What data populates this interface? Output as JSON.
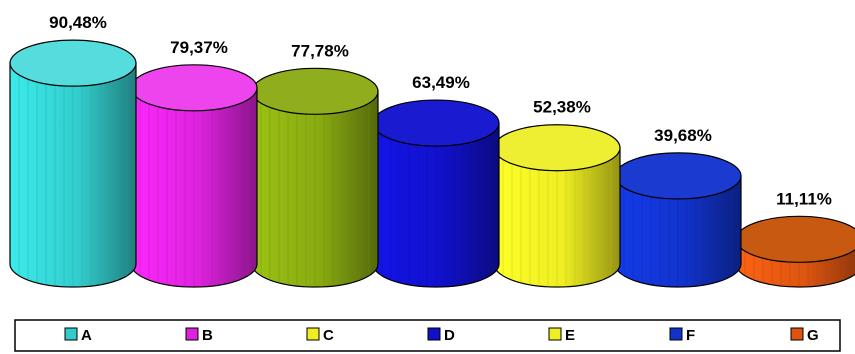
{
  "chart_data": {
    "type": "bar",
    "style": "3d-cylinder",
    "categories": [
      "A",
      "B",
      "C",
      "D",
      "E",
      "F",
      "G"
    ],
    "values": [
      90.48,
      79.37,
      77.78,
      63.49,
      52.38,
      39.68,
      11.11
    ],
    "value_labels": [
      "90,48%",
      "79,37%",
      "77,78%",
      "63,49%",
      "52,38%",
      "39,68%",
      "11,11%"
    ],
    "unit": "%",
    "ylim": [
      0,
      100
    ],
    "grid": false,
    "legend_position": "bottom",
    "colors": [
      "#33cccc",
      "#dd22dd",
      "#88aa11",
      "#1111cc",
      "#eeee22",
      "#1133cc",
      "#dd5511"
    ],
    "top_colors": [
      "#55dddd",
      "#ee44ee",
      "#8fad1c",
      "#1a1ad0",
      "#eeee33",
      "#1a3ad0",
      "#c75a10"
    ],
    "legend_colors": [
      "#33cccc",
      "#dd22dd",
      "#eeee22",
      "#1111cc",
      "#eeee22",
      "#1133cc",
      "#dd5511"
    ]
  }
}
